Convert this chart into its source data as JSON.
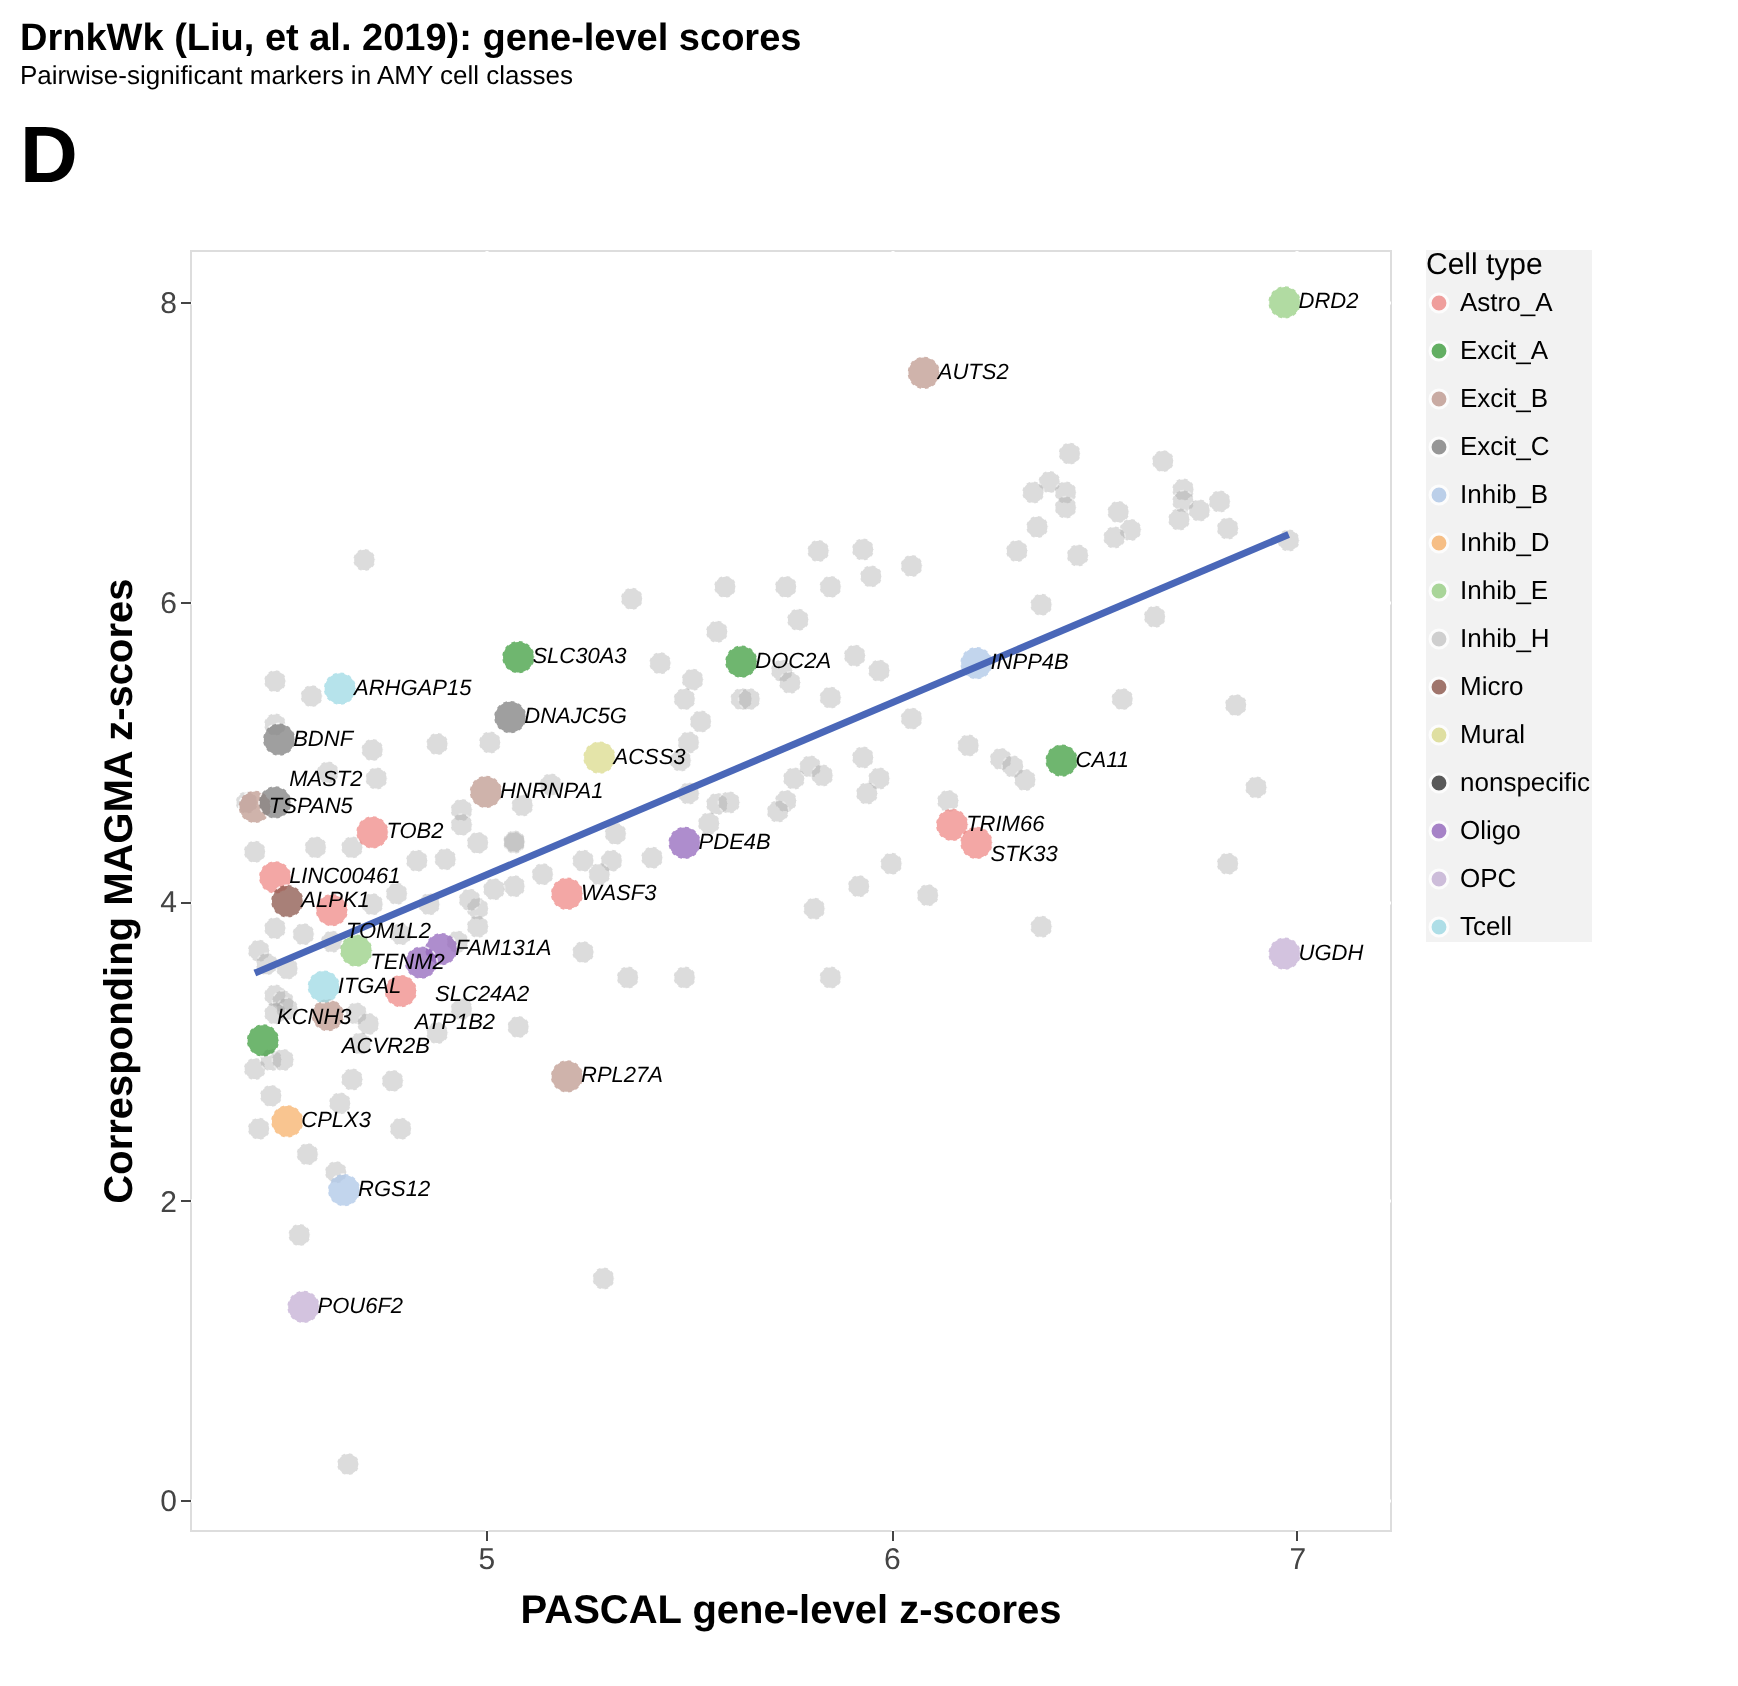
{
  "chart_data": {
    "type": "scatter",
    "title": "DrnkWk (Liu, et al. 2019): gene-level scores",
    "subtitle": "Pairwise-significant markers in AMY cell classes",
    "xlabel": "PASCAL gene-level z-scores",
    "ylabel": "Corresponding MAGMA z-scores",
    "legend_title": "Cell type",
    "xlim": [
      4.27,
      7.23
    ],
    "ylim": [
      -0.2,
      8.35
    ],
    "xticks": [
      5,
      6,
      7
    ],
    "yticks": [
      0,
      2,
      4,
      6,
      8
    ],
    "grid": true,
    "legend": "right",
    "marker": "circle",
    "series": [
      {
        "color": "#9e9e9e",
        "x": [
          6.44,
          6.39,
          6.43,
          6.43,
          6.35,
          6.67,
          6.72,
          6.72,
          6.76,
          6.81,
          6.71,
          6.83,
          6.56,
          6.59,
          6.55,
          6.36,
          6.31,
          6.46,
          6.98,
          6.37,
          6.65,
          6.05,
          5.93,
          5.95,
          5.91,
          5.97,
          6.57,
          6.85,
          6.05,
          6.19,
          6.27,
          6.3,
          6.33,
          6.9,
          5.93,
          5.97,
          5.94,
          6.14,
          6.0,
          6.83,
          5.92,
          6.09,
          6.37,
          5.82,
          5.85,
          5.74,
          5.59,
          5.36,
          5.77,
          5.57,
          5.43,
          5.51,
          5.49,
          5.53,
          5.73,
          5.75,
          5.63,
          5.65,
          5.85,
          5.5,
          5.48,
          5.76,
          5.8,
          5.83,
          5.74,
          5.72,
          5.57,
          5.6,
          5.55,
          5.5,
          5.32,
          5.16,
          5.07,
          5.24,
          5.31,
          5.41,
          5.14,
          5.07,
          5.02,
          4.98,
          4.98,
          5.81,
          5.24,
          5.35,
          5.49,
          5.85,
          4.48,
          4.57,
          4.48,
          4.72,
          4.88,
          5.01,
          4.61,
          4.73,
          4.41,
          4.94,
          5.09,
          4.58,
          4.67,
          4.83,
          4.9,
          4.98,
          4.94,
          5.07,
          4.43,
          5.28,
          4.78,
          4.86,
          4.96,
          4.72,
          4.48,
          4.55,
          4.62,
          4.44,
          4.46,
          4.79,
          4.93,
          4.51,
          4.48,
          4.5,
          4.68,
          4.51,
          4.48,
          4.71,
          4.69,
          4.88,
          4.94,
          5.08,
          4.43,
          4.47,
          4.5,
          4.67,
          4.77,
          4.47,
          4.64,
          4.44,
          4.79,
          4.56,
          4.63,
          4.54,
          5.29,
          4.66,
          4.7
        ],
        "values": [
          6.99,
          6.8,
          6.73,
          6.63,
          6.73,
          6.94,
          6.75,
          6.67,
          6.61,
          6.67,
          6.55,
          6.49,
          6.6,
          6.48,
          6.43,
          6.5,
          6.34,
          6.31,
          6.41,
          5.98,
          5.9,
          6.24,
          6.35,
          6.17,
          5.64,
          5.54,
          5.35,
          5.31,
          5.22,
          5.04,
          4.95,
          4.9,
          4.81,
          4.76,
          4.96,
          4.82,
          4.72,
          4.67,
          4.25,
          4.25,
          4.1,
          4.04,
          3.83,
          6.34,
          6.1,
          6.1,
          6.1,
          6.02,
          5.88,
          5.8,
          5.59,
          5.48,
          5.35,
          5.2,
          5.54,
          5.46,
          5.35,
          5.35,
          5.36,
          5.06,
          4.94,
          4.82,
          4.9,
          4.84,
          4.67,
          4.6,
          4.65,
          4.66,
          4.52,
          4.72,
          4.45,
          4.78,
          4.39,
          4.27,
          4.27,
          4.29,
          4.18,
          4.1,
          4.08,
          3.95,
          3.83,
          3.95,
          3.66,
          3.49,
          3.49,
          3.49,
          5.47,
          5.37,
          5.18,
          5.01,
          5.05,
          5.06,
          4.86,
          4.82,
          4.66,
          4.61,
          4.64,
          4.36,
          4.36,
          4.27,
          4.28,
          4.39,
          4.51,
          4.4,
          4.33,
          4.18,
          4.05,
          3.98,
          4.01,
          3.98,
          3.82,
          3.78,
          3.73,
          3.67,
          3.58,
          3.78,
          3.73,
          3.55,
          3.37,
          3.33,
          3.25,
          3.28,
          3.25,
          3.18,
          3.05,
          3.12,
          3.28,
          3.16,
          2.88,
          2.94,
          2.94,
          2.81,
          2.8,
          2.7,
          2.65,
          2.48,
          2.48,
          2.31,
          2.19,
          1.77,
          1.48,
          0.24,
          6.28
        ]
      },
      {
        "name": "Astro_A",
        "color": "#ef8a87",
        "x": [
          6.15,
          6.21,
          5.2,
          4.72,
          4.48,
          4.62,
          4.79
        ],
        "values": [
          4.51,
          4.39,
          4.05,
          4.46,
          4.16,
          3.94,
          3.4
        ]
      },
      {
        "name": "Excit_A",
        "color": "#3f9e3f",
        "x": [
          6.42,
          5.08,
          5.63,
          4.45
        ],
        "values": [
          4.94,
          5.63,
          5.6,
          3.07
        ]
      },
      {
        "name": "Excit_B",
        "color": "#c09a90",
        "x": [
          6.08,
          5.0,
          5.2,
          4.43,
          4.61
        ],
        "values": [
          7.53,
          4.73,
          2.83,
          4.63,
          3.24
        ]
      },
      {
        "name": "Excit_C",
        "color": "#808080",
        "x": [
          5.06,
          4.49,
          4.48
        ],
        "values": [
          5.23,
          5.08,
          4.66
        ]
      },
      {
        "name": "Inhib_B",
        "color": "#aec7e8",
        "x": [
          6.21,
          4.65
        ],
        "values": [
          5.59,
          2.07
        ]
      },
      {
        "name": "Inhib_D",
        "color": "#f7b26b",
        "x": [
          4.51
        ],
        "values": [
          2.53
        ]
      },
      {
        "name": "Inhib_E",
        "color": "#98cf84",
        "x": [
          6.97,
          4.68
        ],
        "values": [
          8.0,
          3.67
        ]
      },
      {
        "name": "Inhib_H",
        "color": "#c7c7c7"
      },
      {
        "name": "Micro",
        "color": "#8c564b",
        "x": [
          4.51
        ],
        "values": [
          4.0
        ]
      },
      {
        "name": "Mural",
        "color": "#dbdb8d",
        "x": [
          5.28
        ],
        "values": [
          4.96
        ]
      },
      {
        "name": "nonspecific",
        "color": "#333333"
      },
      {
        "name": "Oligo",
        "color": "#9467bd",
        "x": [
          5.49,
          4.89,
          4.84
        ],
        "values": [
          4.39,
          3.68,
          3.59
        ]
      },
      {
        "name": "OPC",
        "color": "#c5b0d5",
        "x": [
          6.97,
          4.55
        ],
        "values": [
          3.65,
          1.29
        ]
      },
      {
        "name": "Tcell",
        "color": "#9edae5",
        "x": [
          4.64,
          4.6
        ],
        "values": [
          5.42,
          3.43
        ]
      },
      {
        "type": "line",
        "color": "#4a67b8",
        "marker": "none",
        "line_style": "solid",
        "x": [
          4.43,
          6.98
        ],
        "values": [
          3.52,
          6.45
        ]
      }
    ],
    "annotations": [
      "D",
      {
        "text": "DRD2",
        "x": 6.97,
        "y": 8.0
      },
      {
        "text": "AUTS2",
        "x": 6.08,
        "y": 7.53
      },
      {
        "text": "INPP4B",
        "x": 6.21,
        "y": 5.59
      },
      {
        "text": "CA11",
        "x": 6.42,
        "y": 4.94
      },
      {
        "text": "TRIM66",
        "x": 6.15,
        "y": 4.51
      },
      {
        "text": "STK33",
        "x": 6.21,
        "y": 4.39
      },
      {
        "text": "UGDH",
        "x": 6.97,
        "y": 3.65
      },
      {
        "text": "SLC30A3",
        "x": 5.08,
        "y": 5.63
      },
      {
        "text": "DOC2A",
        "x": 5.63,
        "y": 5.6
      },
      {
        "text": "DNAJC5G",
        "x": 5.06,
        "y": 5.23
      },
      {
        "text": "ACSS3",
        "x": 5.28,
        "y": 4.96
      },
      {
        "text": "HNRNPA1",
        "x": 5.0,
        "y": 4.73
      },
      {
        "text": "PDE4B",
        "x": 5.49,
        "y": 4.39
      },
      {
        "text": "WASF3",
        "x": 5.2,
        "y": 4.05
      },
      {
        "text": "RPL27A",
        "x": 5.2,
        "y": 2.83
      },
      {
        "text": "ARHGAP15",
        "x": 4.64,
        "y": 5.42
      },
      {
        "text": "BDNF",
        "x": 4.49,
        "y": 5.08
      },
      {
        "text": "TSPAN5",
        "x": 4.43,
        "y": 4.63
      },
      {
        "text": "MAST2",
        "x": 4.48,
        "y": 4.66
      },
      {
        "text": "TOB2",
        "x": 4.72,
        "y": 4.46
      },
      {
        "text": "LINC00461",
        "x": 4.48,
        "y": 4.16
      },
      {
        "text": "ALPK1",
        "x": 4.51,
        "y": 4.0
      },
      {
        "text": "TOM1L2",
        "x": 4.62,
        "y": 3.94
      },
      {
        "text": "TENM2",
        "x": 4.68,
        "y": 3.67
      },
      {
        "text": "FAM131A",
        "x": 4.89,
        "y": 3.68
      },
      {
        "text": "SLC24A2",
        "x": 4.84,
        "y": 3.59
      },
      {
        "text": "ITGAL",
        "x": 4.6,
        "y": 3.43
      },
      {
        "text": "ATP1B2",
        "x": 4.79,
        "y": 3.4
      },
      {
        "text": "ACVR2B",
        "x": 4.61,
        "y": 3.24
      },
      {
        "text": "KCNH3",
        "x": 4.45,
        "y": 3.07
      },
      {
        "text": "CPLX3",
        "x": 4.51,
        "y": 2.53
      },
      {
        "text": "RGS12",
        "x": 4.65,
        "y": 2.07
      },
      {
        "text": "POU6F2",
        "x": 4.55,
        "y": 1.29
      }
    ]
  }
}
